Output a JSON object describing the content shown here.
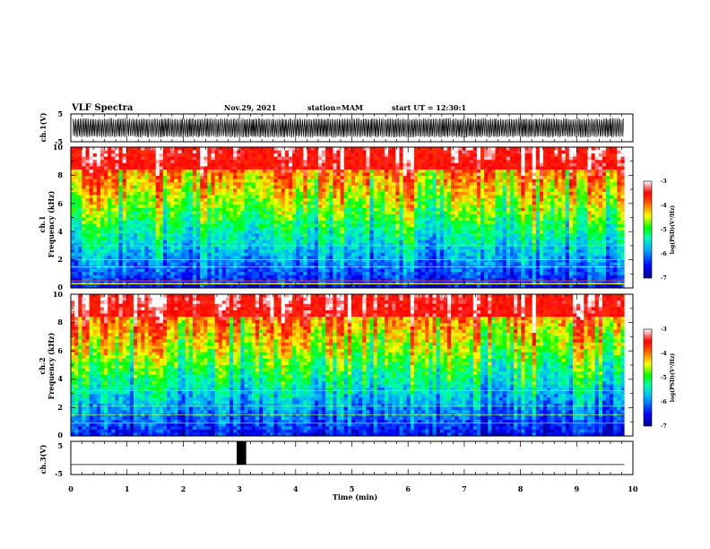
{
  "header": {
    "title": "VLF Spectra",
    "date": "Nov.29, 2021",
    "station": "station=MAM",
    "start": "start UT = 12:30:1"
  },
  "chart_data": [
    {
      "type": "line",
      "panel": "ch1-waveform",
      "ylabel": "ch.1(V)",
      "ylim": [
        -5,
        5
      ],
      "yticks": [
        "5",
        "-5"
      ],
      "x_range_min": [
        0,
        9.85
      ],
      "description_values": {
        "amplitude_range": [
          -3.5,
          3.5
        ]
      },
      "color": "#000000"
    },
    {
      "type": "heatmap",
      "panel": "ch1-spectrogram",
      "ylabel": "ch.1\nFrequency (kHz)",
      "ylabel_line1": "ch.1",
      "ylabel_line2": "Frequency (kHz)",
      "ylim": [
        0,
        10
      ],
      "yticks": [
        "0",
        "2",
        "4",
        "6",
        "8",
        "10"
      ],
      "x_range_min": [
        0,
        9.85
      ],
      "z_label": "log(PSD)(V²/Hz)",
      "z_range": [
        -7,
        -3
      ],
      "z_ticks": [
        "-3",
        "-4",
        "-5",
        "-6",
        "-7"
      ],
      "colormap": [
        "#0000ff",
        "#00ffff",
        "#00ff00",
        "#ffff00",
        "#ff0000",
        "#ffffff"
      ]
    },
    {
      "type": "heatmap",
      "panel": "ch2-spectrogram",
      "ylabel": "ch.2\nFrequency (kHz)",
      "ylabel_line1": "ch.2",
      "ylabel_line2": "Frequency (kHz)",
      "ylim": [
        0,
        10
      ],
      "yticks": [
        "0",
        "2",
        "4",
        "6",
        "8",
        "10"
      ],
      "x_range_min": [
        0,
        9.85
      ],
      "z_label": "log(PSD)(V²/Hz)",
      "z_range": [
        -7,
        -3
      ],
      "z_ticks": [
        "-3",
        "-4",
        "-5",
        "-6",
        "-7"
      ],
      "colormap": [
        "#0000ff",
        "#00ffff",
        "#00ff00",
        "#ffff00",
        "#ff0000",
        "#ffffff"
      ]
    },
    {
      "type": "line",
      "panel": "ch3-signal",
      "ylabel": "ch.3(V)",
      "ylim": [
        -5,
        5
      ],
      "yticks": [
        "5",
        "-5"
      ],
      "x_range_min": [
        0,
        9.85
      ],
      "baseline": -2,
      "pulse": {
        "x_start": 2.95,
        "x_end": 3.12,
        "high": 5,
        "low": -2
      },
      "color": "#000000"
    }
  ],
  "xaxis": {
    "label": "Time (min)",
    "xlim": [
      0,
      10
    ],
    "ticks": [
      "0",
      "1",
      "2",
      "3",
      "4",
      "5",
      "6",
      "7",
      "8",
      "9",
      "10"
    ]
  }
}
